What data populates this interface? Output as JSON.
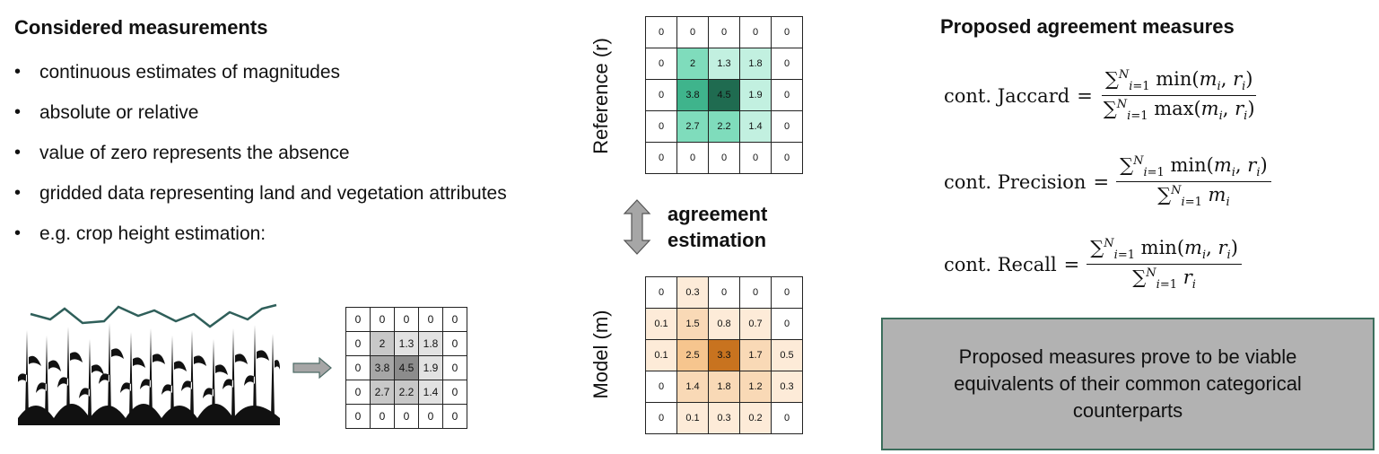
{
  "left": {
    "title": "Considered measurements",
    "bullets": [
      "continuous estimates of magnitudes",
      "absolute or relative",
      "value of zero represents the absence",
      "gridded data representing land and vegetation attributes",
      "e.g. crop height estimation:"
    ],
    "crop_grid": [
      [
        "0",
        "0",
        "0",
        "0",
        "0"
      ],
      [
        "0",
        "2",
        "1.3",
        "1.8",
        "0"
      ],
      [
        "0",
        "3.8",
        "4.5",
        "1.9",
        "0"
      ],
      [
        "0",
        "2.7",
        "2.2",
        "1.4",
        "0"
      ],
      [
        "0",
        "0",
        "0",
        "0",
        "0"
      ]
    ]
  },
  "middle": {
    "reference_label": "Reference (r)",
    "model_label": "Model (m)",
    "agreement_label_line1": "agreement",
    "agreement_label_line2": "estimation",
    "reference_grid": [
      [
        "0",
        "0",
        "0",
        "0",
        "0"
      ],
      [
        "0",
        "2",
        "1.3",
        "1.8",
        "0"
      ],
      [
        "0",
        "3.8",
        "4.5",
        "1.9",
        "0"
      ],
      [
        "0",
        "2.7",
        "2.2",
        "1.4",
        "0"
      ],
      [
        "0",
        "0",
        "0",
        "0",
        "0"
      ]
    ],
    "model_grid": [
      [
        "0",
        "0.3",
        "0",
        "0",
        "0"
      ],
      [
        "0.1",
        "1.5",
        "0.8",
        "0.7",
        "0"
      ],
      [
        "0.1",
        "2.5",
        "3.3",
        "1.7",
        "0.5"
      ],
      [
        "0",
        "1.4",
        "1.8",
        "1.2",
        "0.3"
      ],
      [
        "0",
        "0.1",
        "0.3",
        "0.2",
        "0"
      ]
    ]
  },
  "right": {
    "title": "Proposed agreement measures",
    "formulas": {
      "jaccard_name": "cont. Jaccard",
      "precision_name": "cont. Precision",
      "recall_name": "cont. Recall"
    },
    "conclusion": "Proposed measures prove to be viable equivalents of their common categorical counterparts"
  },
  "colors": {
    "gray_arrow": "#a6a6a6",
    "crop_line": "#2f5f5a",
    "conclusion_bg": "#b2b2b2",
    "conclusion_border": "#3c6e5c"
  }
}
